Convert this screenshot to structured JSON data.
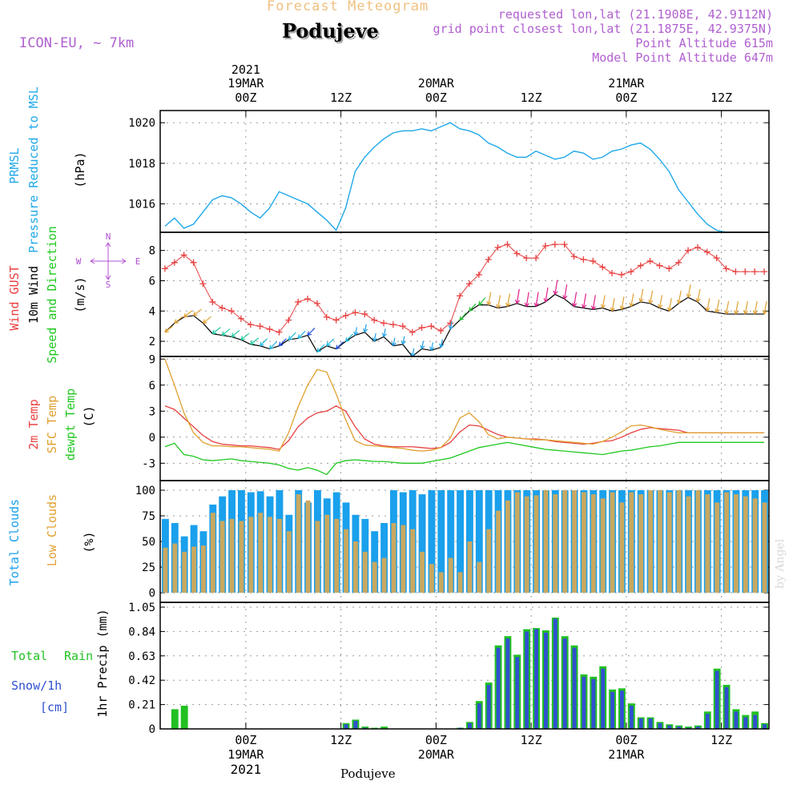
{
  "header": {
    "product": "Forecast Meteogram",
    "location": "Podujeve",
    "model": "ICON-EU, ~ 7km",
    "requested": "requested lon,lat (21.1908E, 42.9112N)",
    "gridpoint": "grid point closest lon,lat (21.1875E, 42.9375N)",
    "point_alt": "Point Altitude 615m",
    "model_alt": "Model Point Altitude 647m",
    "credit": "by Angel",
    "footer": "Podujeve"
  },
  "colors": {
    "pressure": "#1ea8e8",
    "gust": "#e84040",
    "wind": "#000000",
    "temp2m": "#e84040",
    "sfc": "#e0a030",
    "dewpt": "#20c820",
    "total_cloud": "#1aa0ec",
    "low_cloud": "#c8a860",
    "rain": "#22c022",
    "snow": "#3050d0",
    "direction": "#b050d0",
    "header_purple": "#b060d0",
    "header_orange": "#f0c080"
  },
  "chart_data": {
    "type": "meteogram",
    "time_steps": 64,
    "x_axis": {
      "unit": "hour index from start",
      "top_year": "2021",
      "ticks": [
        {
          "i": 9,
          "top1": "19MAR",
          "top2": "00Z",
          "bot1": "00Z",
          "bot2": "19MAR",
          "bot3": "2021"
        },
        {
          "i": 19,
          "top1": "",
          "top2": "12Z",
          "bot1": "12Z",
          "bot2": "",
          "bot3": ""
        },
        {
          "i": 29,
          "top1": "20MAR",
          "top2": "00Z",
          "bot1": "00Z",
          "bot2": "20MAR",
          "bot3": ""
        },
        {
          "i": 39,
          "top1": "",
          "top2": "12Z",
          "bot1": "12Z",
          "bot2": "",
          "bot3": ""
        },
        {
          "i": 49,
          "top1": "21MAR",
          "top2": "00Z",
          "bot1": "00Z",
          "bot2": "21MAR",
          "bot3": ""
        },
        {
          "i": 59,
          "top1": "",
          "top2": "12Z",
          "bot1": "12Z",
          "bot2": "",
          "bot3": ""
        }
      ]
    },
    "panels": [
      {
        "id": "pressure",
        "labels": [
          "PRMSL",
          "Pressure Reduced to MSL",
          "(hPa)"
        ],
        "ylim": [
          1014.6,
          1020.6
        ],
        "yticks": [
          1016,
          1018,
          1020
        ],
        "series": [
          {
            "name": "PRMSL",
            "type": "line",
            "values": [
              1014.9,
              1015.3,
              1014.8,
              1015.0,
              1015.6,
              1016.2,
              1016.4,
              1016.3,
              1016.0,
              1015.6,
              1015.3,
              1015.8,
              1016.6,
              1016.4,
              1016.2,
              1016.0,
              1015.6,
              1015.2,
              1014.7,
              1015.8,
              1017.6,
              1018.3,
              1018.8,
              1019.2,
              1019.5,
              1019.6,
              1019.6,
              1019.7,
              1019.6,
              1019.8,
              1020.0,
              1019.7,
              1019.6,
              1019.4,
              1019.0,
              1018.8,
              1018.5,
              1018.3,
              1018.3,
              1018.6,
              1018.4,
              1018.2,
              1018.3,
              1018.6,
              1018.5,
              1018.2,
              1018.3,
              1018.6,
              1018.7,
              1018.9,
              1019.0,
              1018.7,
              1018.2,
              1017.6,
              1016.7,
              1016.1,
              1015.5,
              1015.0,
              1014.7,
              1014.6,
              1014.6,
              1014.6,
              1014.6,
              1014.6
            ]
          }
        ]
      },
      {
        "id": "wind",
        "labels": [
          "Wind GUST",
          "10m Wind",
          "Speed and Direction",
          "(m/s)"
        ],
        "compass": {
          "n": "N",
          "s": "S",
          "w": "W",
          "e": "E"
        },
        "ylim": [
          1.0,
          9.2
        ],
        "yticks": [
          2,
          4,
          6,
          8
        ],
        "series": [
          {
            "name": "Wind GUST",
            "type": "line_markers",
            "values": [
              6.8,
              7.2,
              7.7,
              7.2,
              5.8,
              4.6,
              4.2,
              4.0,
              3.5,
              3.1,
              3.0,
              2.8,
              2.6,
              3.4,
              4.6,
              4.8,
              4.5,
              3.6,
              3.4,
              3.7,
              3.9,
              3.8,
              3.4,
              3.2,
              3.1,
              3.0,
              2.6,
              2.9,
              3.0,
              2.7,
              3.2,
              5.0,
              5.8,
              6.4,
              7.4,
              8.2,
              8.4,
              7.8,
              7.5,
              7.5,
              8.3,
              8.4,
              8.4,
              7.6,
              7.4,
              7.3,
              6.9,
              6.5,
              6.4,
              6.6,
              7.0,
              7.3,
              7.0,
              6.8,
              7.2,
              8.0,
              8.2,
              7.9,
              7.5,
              6.8,
              6.6,
              6.6,
              6.6,
              6.6
            ]
          },
          {
            "name": "10m Wind",
            "type": "line",
            "values": [
              2.6,
              3.2,
              3.6,
              3.7,
              3.2,
              2.5,
              2.4,
              2.3,
              2.1,
              1.8,
              1.7,
              1.5,
              1.7,
              2.1,
              2.2,
              2.4,
              1.3,
              1.7,
              1.5,
              2.0,
              2.4,
              2.6,
              2.0,
              2.3,
              1.7,
              1.8,
              1.0,
              1.5,
              1.4,
              1.6,
              2.8,
              3.4,
              4.0,
              4.4,
              4.4,
              4.2,
              4.3,
              4.5,
              4.3,
              4.3,
              4.6,
              5.1,
              4.8,
              4.3,
              4.2,
              4.1,
              4.2,
              4.0,
              4.1,
              4.3,
              4.6,
              4.5,
              4.2,
              4.0,
              4.5,
              4.9,
              4.6,
              4.0,
              3.9,
              3.8,
              3.8,
              3.8,
              3.8,
              3.8
            ]
          }
        ]
      },
      {
        "id": "temperature",
        "labels": [
          "2m Temp",
          "SFC Temp",
          "dewpt Temp",
          "(C)"
        ],
        "ylim": [
          -5.0,
          9.3
        ],
        "yticks": [
          -3,
          0,
          3,
          6,
          9
        ],
        "series": [
          {
            "name": "2m Temp",
            "type": "line",
            "values": [
              3.6,
              3.2,
              2.2,
              1.2,
              0.2,
              -0.5,
              -0.8,
              -0.9,
              -1.0,
              -1.0,
              -1.1,
              -1.2,
              -1.4,
              -0.4,
              1.2,
              2.2,
              2.8,
              3.0,
              3.6,
              3.0,
              1.2,
              -0.2,
              -0.8,
              -1.0,
              -1.1,
              -1.1,
              -1.1,
              -1.2,
              -1.3,
              -1.2,
              -0.6,
              0.6,
              1.4,
              1.3,
              0.8,
              0.3,
              0.0,
              -0.1,
              -0.2,
              -0.2,
              -0.3,
              -0.5,
              -0.6,
              -0.7,
              -0.8,
              -0.7,
              -0.5,
              -0.4,
              0.0,
              0.5,
              0.9,
              1.1,
              1.0,
              0.9,
              0.8,
              0.5,
              0.5,
              0.5,
              0.5,
              0.5,
              0.5,
              0.5,
              0.5,
              0.5
            ]
          },
          {
            "name": "SFC Temp",
            "type": "line",
            "values": [
              9.0,
              6.0,
              2.8,
              0.5,
              -0.6,
              -1.0,
              -1.0,
              -1.1,
              -1.1,
              -1.2,
              -1.3,
              -1.4,
              -1.6,
              0.5,
              3.5,
              6.0,
              7.8,
              7.5,
              5.0,
              2.0,
              -0.4,
              -0.9,
              -1.0,
              -1.1,
              -1.2,
              -1.3,
              -1.5,
              -1.6,
              -1.5,
              -1.2,
              -0.1,
              2.2,
              2.8,
              1.8,
              0.3,
              -0.2,
              0.0,
              -0.1,
              -0.2,
              -0.3,
              -0.3,
              -0.4,
              -0.5,
              -0.6,
              -0.7,
              -0.8,
              -0.5,
              0.0,
              0.6,
              1.3,
              1.4,
              1.2,
              0.9,
              0.7,
              0.5,
              0.5,
              0.5,
              0.5,
              0.5,
              0.5,
              0.5,
              0.5,
              0.5,
              0.5
            ]
          },
          {
            "name": "dewpt Temp",
            "type": "line",
            "values": [
              -1.1,
              -0.7,
              -2.0,
              -2.2,
              -2.6,
              -2.7,
              -2.6,
              -2.5,
              -2.7,
              -2.8,
              -2.9,
              -3.0,
              -3.2,
              -3.6,
              -3.8,
              -3.5,
              -3.8,
              -4.3,
              -3.0,
              -2.7,
              -2.6,
              -2.7,
              -2.8,
              -2.8,
              -2.9,
              -3.0,
              -3.0,
              -3.0,
              -2.8,
              -2.6,
              -2.4,
              -2.0,
              -1.6,
              -1.2,
              -1.0,
              -0.8,
              -0.6,
              -0.8,
              -1.0,
              -1.2,
              -1.4,
              -1.5,
              -1.6,
              -1.7,
              -1.8,
              -1.9,
              -2.0,
              -1.8,
              -1.6,
              -1.5,
              -1.3,
              -1.1,
              -1.0,
              -0.8,
              -0.6,
              -0.6,
              -0.6,
              -0.6,
              -0.6,
              -0.6,
              -0.6,
              -0.6,
              -0.6,
              -0.6
            ]
          }
        ]
      },
      {
        "id": "clouds",
        "labels": [
          "Total Clouds",
          "Low Clouds",
          "(%)"
        ],
        "ylim": [
          0,
          100
        ],
        "yticks": [
          0,
          25,
          50,
          75,
          100
        ],
        "series": [
          {
            "name": "Total Clouds",
            "type": "bar",
            "values": [
              72,
              68,
              55,
              66,
              60,
              86,
              94,
              100,
              100,
              98,
              99,
              94,
              100,
              76,
              100,
              88,
              100,
              92,
              98,
              88,
              76,
              72,
              60,
              68,
              100,
              98,
              100,
              96,
              100,
              100,
              100,
              100,
              100,
              100,
              100,
              100,
              100,
              100,
              100,
              100,
              100,
              100,
              100,
              100,
              100,
              100,
              100,
              100,
              100,
              100,
              100,
              100,
              100,
              100,
              100,
              100,
              100,
              100,
              100,
              100,
              100,
              100,
              100,
              100
            ]
          },
          {
            "name": "Low Clouds",
            "type": "bar",
            "values": [
              44,
              48,
              40,
              45,
              46,
              78,
              70,
              72,
              70,
              74,
              78,
              74,
              72,
              60,
              96,
              90,
              70,
              76,
              72,
              62,
              50,
              40,
              30,
              34,
              68,
              66,
              62,
              40,
              28,
              20,
              34,
              20,
              50,
              30,
              62,
              80,
              90,
              98,
              94,
              95,
              100,
              96,
              100,
              100,
              98,
              96,
              92,
              98,
              88,
              98,
              96,
              100,
              100,
              98,
              100,
              94,
              100,
              96,
              88,
              98,
              96,
              94,
              92,
              88
            ]
          }
        ]
      },
      {
        "id": "precip",
        "labels": [
          "Total",
          "Rain",
          "Snow/1h",
          "[cm]",
          "1hr Precip (mm)"
        ],
        "ylim": [
          0,
          1.05
        ],
        "yticks": [
          0,
          0.21,
          0.42,
          0.63,
          0.84,
          1.05
        ],
        "ytick_labels": [
          "0",
          "0.21",
          "0.42",
          "0.63",
          "0.84",
          "1.05"
        ],
        "series": [
          {
            "name": "Total Rain",
            "type": "bar",
            "values": [
              0,
              0.17,
              0.2,
              0,
              0,
              0,
              0,
              0,
              0,
              0,
              0,
              0,
              0,
              0,
              0,
              0,
              0,
              0,
              0,
              0.05,
              0.08,
              0.02,
              0.01,
              0.02,
              0,
              0,
              0,
              0,
              0,
              0,
              0,
              0.01,
              0.06,
              0.24,
              0.4,
              0.72,
              0.8,
              0.64,
              0.86,
              0.87,
              0.85,
              0.96,
              0.8,
              0.72,
              0.47,
              0.45,
              0.54,
              0.34,
              0.35,
              0.22,
              0.1,
              0.1,
              0.06,
              0.04,
              0.03,
              0.02,
              0.03,
              0.15,
              0.52,
              0.38,
              0.17,
              0.12,
              0.15,
              0.05
            ]
          },
          {
            "name": "Snow/1h",
            "type": "bar",
            "values": [
              0,
              0,
              0,
              0,
              0,
              0,
              0,
              0,
              0,
              0,
              0,
              0,
              0,
              0,
              0,
              0,
              0,
              0,
              0,
              0.04,
              0.07,
              0.01,
              0,
              0,
              0,
              0,
              0,
              0,
              0,
              0,
              0,
              0.01,
              0.05,
              0.22,
              0.38,
              0.7,
              0.78,
              0.62,
              0.84,
              0.86,
              0.83,
              0.95,
              0.78,
              0.7,
              0.45,
              0.43,
              0.52,
              0.32,
              0.33,
              0.2,
              0.09,
              0.09,
              0.05,
              0.03,
              0.02,
              0.01,
              0.02,
              0.13,
              0.5,
              0.36,
              0.15,
              0.1,
              0.12,
              0.04
            ]
          }
        ]
      }
    ]
  }
}
